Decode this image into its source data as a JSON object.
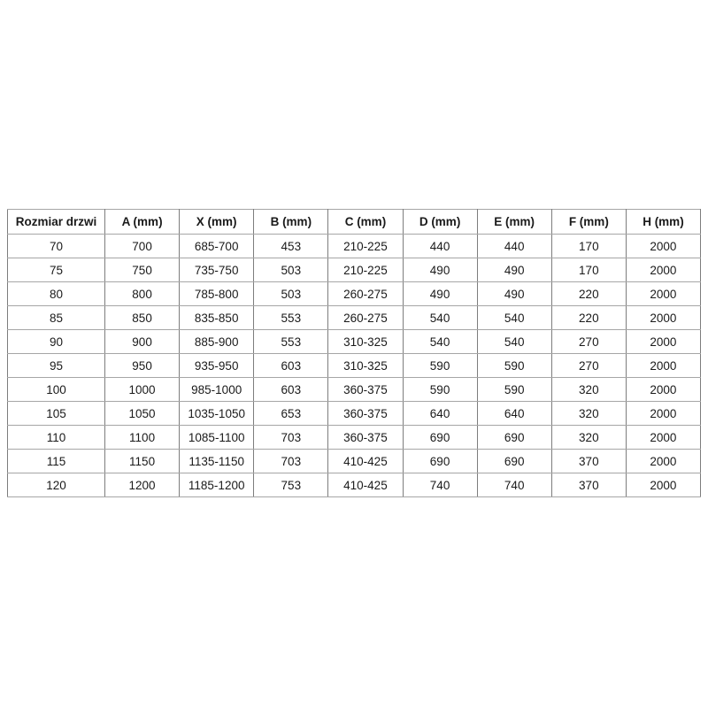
{
  "page": {
    "background_color": "#ffffff"
  },
  "colors": {
    "border_vertical": "#7d7d7d",
    "border_horizontal": "#a6a6a6",
    "text": "#1a1a1a",
    "table_background": "#ffffff"
  },
  "table": {
    "headers": [
      "Rozmiar drzwi",
      "A (mm)",
      "X (mm)",
      "B (mm)",
      "C (mm)",
      "D (mm)",
      "E (mm)",
      "F (mm)",
      "H (mm)"
    ],
    "rows": [
      [
        "70",
        "700",
        "685-700",
        "453",
        "210-225",
        "440",
        "440",
        "170",
        "2000"
      ],
      [
        "75",
        "750",
        "735-750",
        "503",
        "210-225",
        "490",
        "490",
        "170",
        "2000"
      ],
      [
        "80",
        "800",
        "785-800",
        "503",
        "260-275",
        "490",
        "490",
        "220",
        "2000"
      ],
      [
        "85",
        "850",
        "835-850",
        "553",
        "260-275",
        "540",
        "540",
        "220",
        "2000"
      ],
      [
        "90",
        "900",
        "885-900",
        "553",
        "310-325",
        "540",
        "540",
        "270",
        "2000"
      ],
      [
        "95",
        "950",
        "935-950",
        "603",
        "310-325",
        "590",
        "590",
        "270",
        "2000"
      ],
      [
        "100",
        "1000",
        "985-1000",
        "603",
        "360-375",
        "590",
        "590",
        "320",
        "2000"
      ],
      [
        "105",
        "1050",
        "1035-1050",
        "653",
        "360-375",
        "640",
        "640",
        "320",
        "2000"
      ],
      [
        "110",
        "1100",
        "1085-1100",
        "703",
        "360-375",
        "690",
        "690",
        "320",
        "2000"
      ],
      [
        "115",
        "1150",
        "1135-1150",
        "703",
        "410-425",
        "690",
        "690",
        "370",
        "2000"
      ],
      [
        "120",
        "1200",
        "1185-1200",
        "753",
        "410-425",
        "740",
        "740",
        "370",
        "2000"
      ]
    ]
  }
}
